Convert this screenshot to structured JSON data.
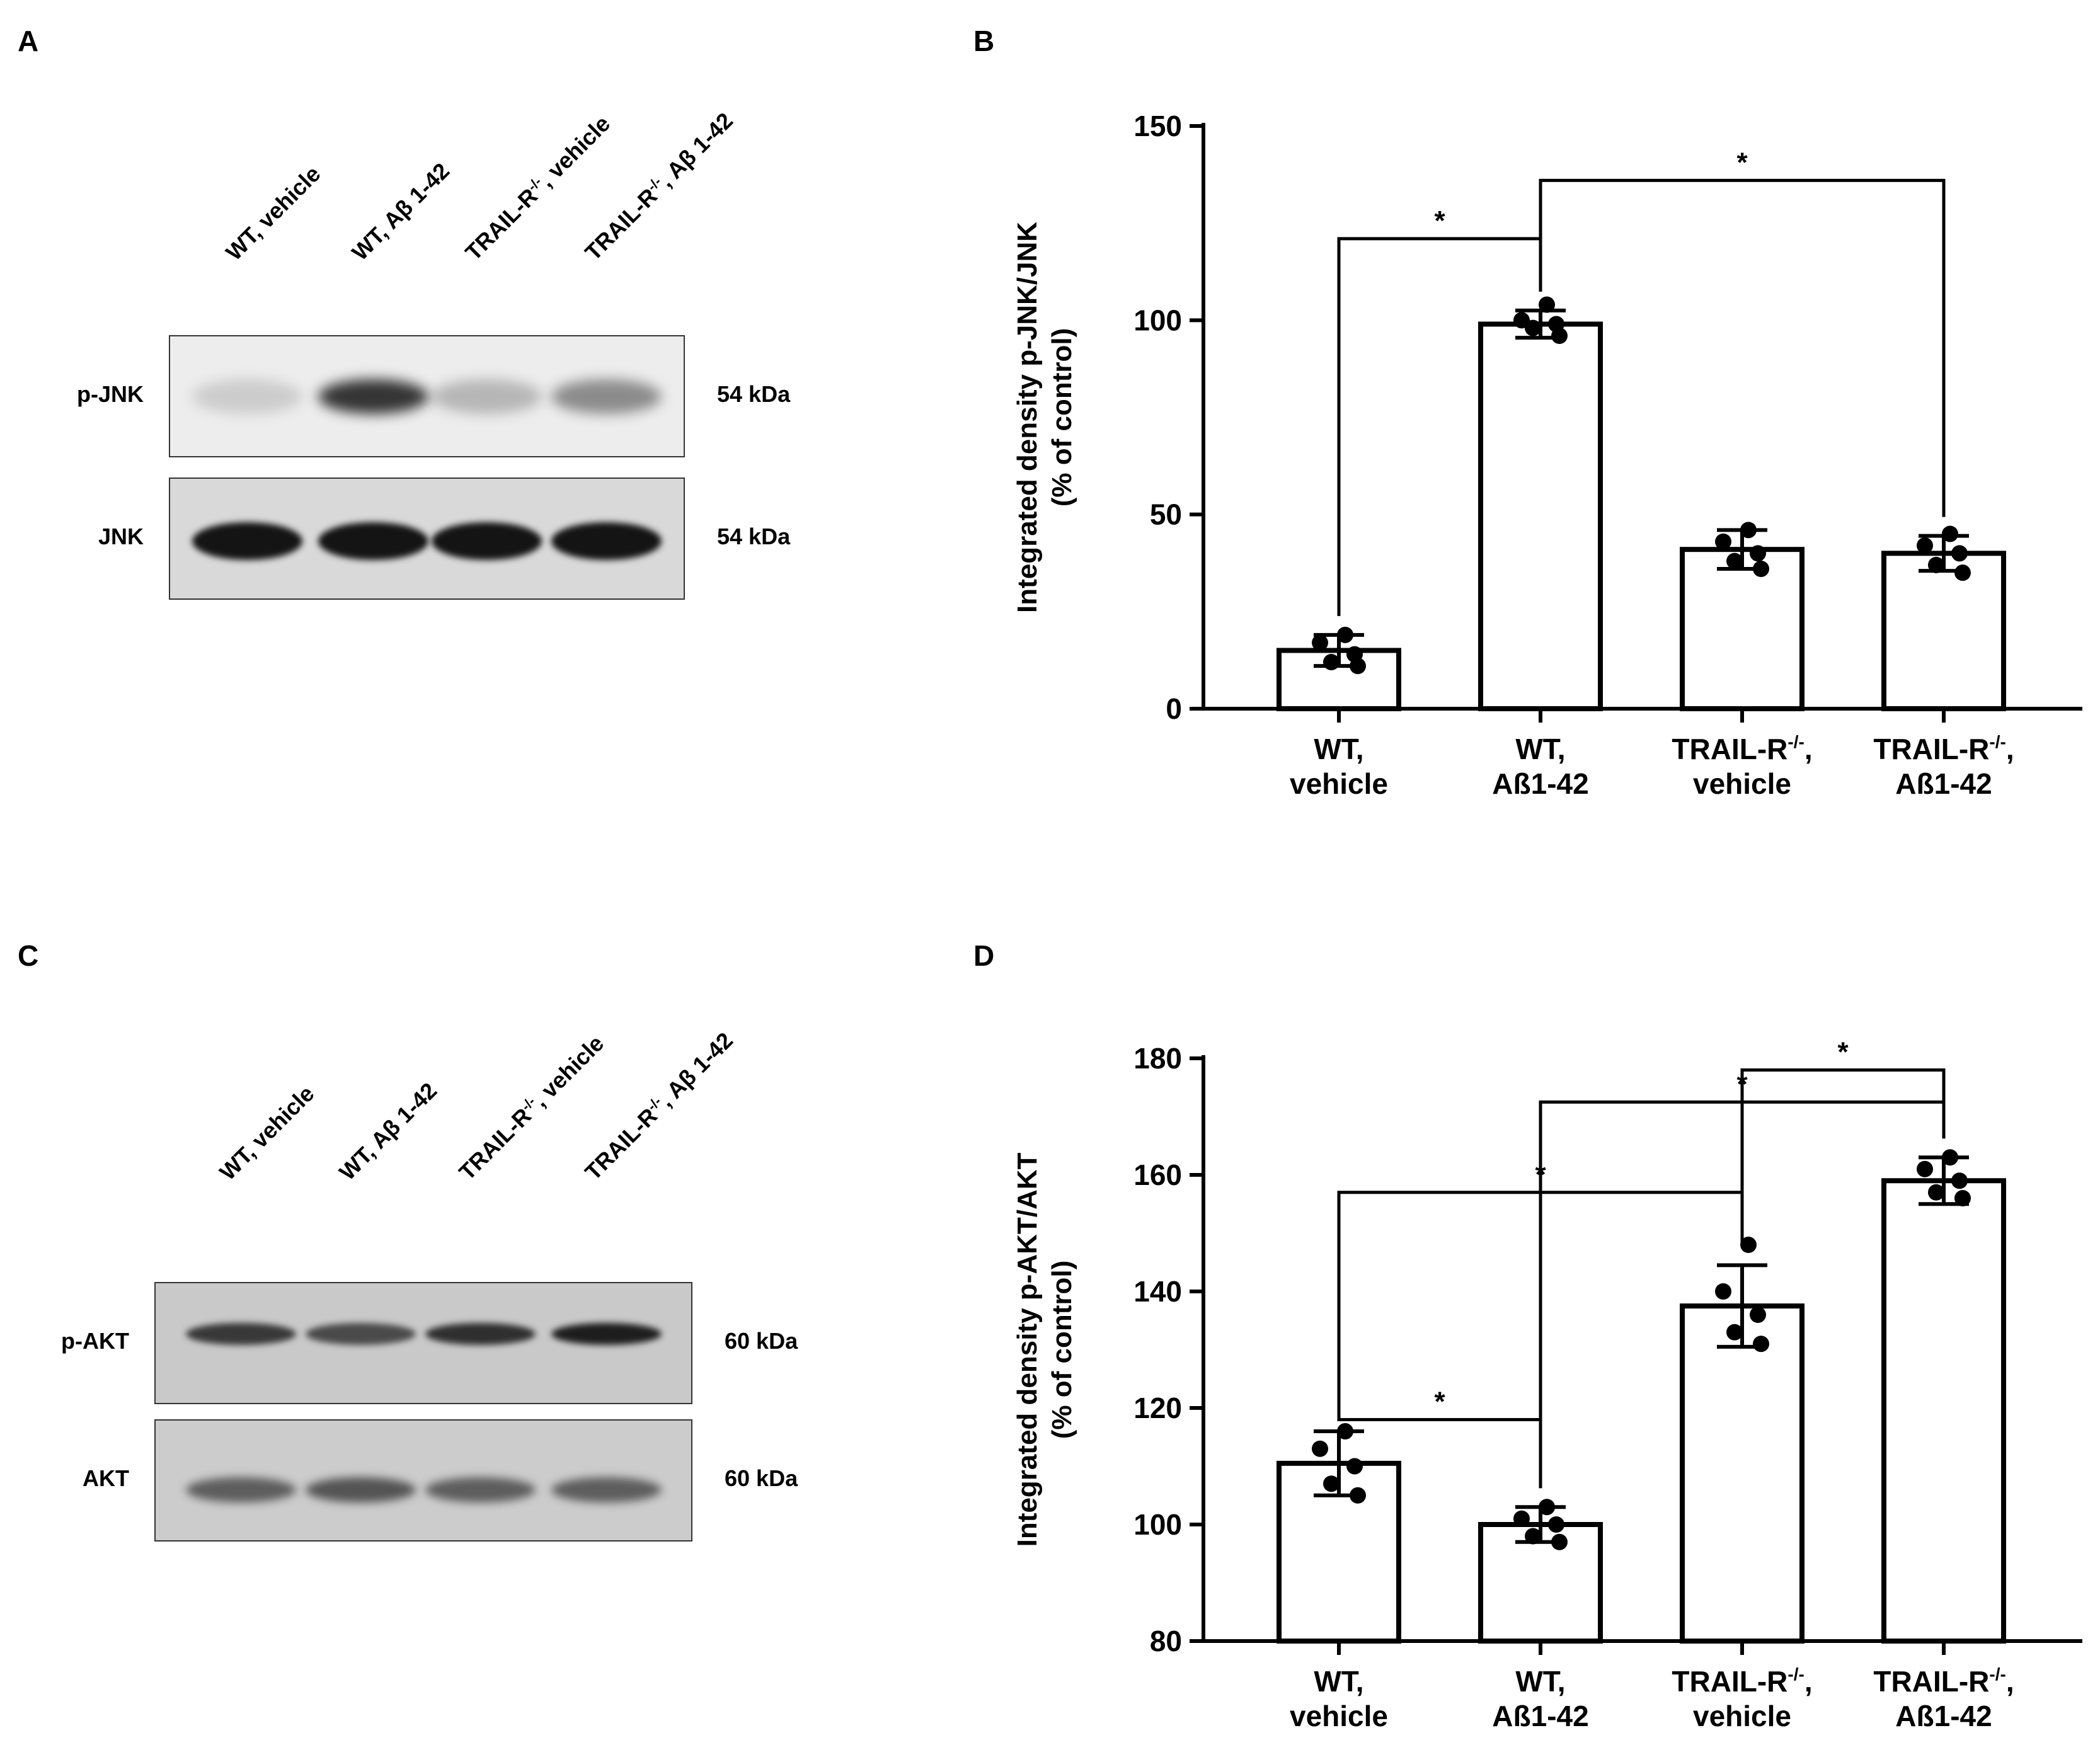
{
  "panels": {
    "A": "A",
    "B": "B",
    "C": "C",
    "D": "D"
  },
  "lanes": {
    "top": [
      "WT, vehicle",
      "WT, Aβ 1-42",
      "TRAIL-R-/-, vehicle",
      "TRAIL-R-/-, Aβ 1-42"
    ],
    "bottom": [
      "WT, vehicle",
      "WT, Aβ 1-42",
      "TRAIL-R-/-, vehicle",
      "TRAIL-R-/-, Aβ 1-42"
    ]
  },
  "lane_parts": {
    "top": [
      {
        "pre": "WT, vehicle",
        "sup": "",
        "post": ""
      },
      {
        "pre": "WT, Aβ 1-42",
        "sup": "",
        "post": ""
      },
      {
        "pre": "TRAIL-R",
        "sup": "-/-",
        "post": ", vehicle"
      },
      {
        "pre": "TRAIL-R",
        "sup": "-/-",
        "post": ", Aβ 1-42"
      }
    ],
    "bottom": [
      {
        "pre": "WT, vehicle",
        "sup": "",
        "post": ""
      },
      {
        "pre": "WT, Aβ 1-42",
        "sup": "",
        "post": ""
      },
      {
        "pre": "TRAIL-R",
        "sup": "-/-",
        "post": ", vehicle"
      },
      {
        "pre": "TRAIL-R",
        "sup": "-/-",
        "post": ", Aβ 1-42"
      }
    ]
  },
  "blots": {
    "A": [
      {
        "label": "p-JNK",
        "kda": "54 kDa",
        "intensity": [
          0.15,
          0.85,
          0.25,
          0.45
        ]
      },
      {
        "label": "JNK",
        "kda": "54 kDa",
        "intensity": [
          1,
          1,
          1,
          1
        ]
      }
    ],
    "C": [
      {
        "label": "p-AKT",
        "kda": "60 kDa",
        "intensity": [
          0.8,
          0.7,
          0.85,
          0.95
        ]
      },
      {
        "label": "AKT",
        "kda": "60 kDa",
        "intensity": [
          0.6,
          0.65,
          0.6,
          0.6
        ]
      }
    ]
  },
  "chart_data": [
    {
      "panel": "B",
      "type": "bar",
      "categories": [
        {
          "line1": "WT,",
          "line2": "vehicle",
          "sup": ""
        },
        {
          "line1": "WT,",
          "line2": "Aß1-42",
          "sup": ""
        },
        {
          "line1": "TRAIL-R",
          "line2": "vehicle",
          "sup": "-/-"
        },
        {
          "line1": "TRAIL-R",
          "line2": "Aß1-42",
          "sup": "-/-"
        }
      ],
      "values": [
        15,
        99,
        41,
        40
      ],
      "errors": [
        4,
        3.5,
        5,
        4.5
      ],
      "points": [
        [
          19,
          17,
          14,
          12,
          11
        ],
        [
          104,
          100,
          99,
          98,
          96
        ],
        [
          46,
          43,
          40,
          38,
          36
        ],
        [
          45,
          42,
          40,
          37,
          35
        ]
      ],
      "ylabel_line1": "Integrated density p-JNK/JNK",
      "ylabel_line2": "(% of control)",
      "ylim": [
        0,
        150
      ],
      "yticks": [
        0,
        50,
        100,
        150
      ],
      "significance": [
        {
          "from": 0,
          "to": 1,
          "y": 121,
          "label": "*"
        },
        {
          "from": 1,
          "to": 3,
          "y": 136,
          "label": "*"
        }
      ]
    },
    {
      "panel": "D",
      "type": "bar",
      "categories": [
        {
          "line1": "WT,",
          "line2": "vehicle",
          "sup": ""
        },
        {
          "line1": "WT,",
          "line2": "Aß1-42",
          "sup": ""
        },
        {
          "line1": "TRAIL-R",
          "line2": "vehicle",
          "sup": "-/-"
        },
        {
          "line1": "TRAIL-R",
          "line2": "Aß1-42",
          "sup": "-/-"
        }
      ],
      "values": [
        110.5,
        100,
        137.5,
        159
      ],
      "errors": [
        5.5,
        3,
        7,
        4
      ],
      "points": [
        [
          116,
          113,
          110,
          107,
          105
        ],
        [
          103,
          101,
          100,
          98,
          97
        ],
        [
          148,
          140,
          136,
          133,
          131
        ],
        [
          163,
          161,
          159,
          157,
          156
        ]
      ],
      "ylabel_line1": "Integrated density p-AKT/AKT",
      "ylabel_line2": "(% of control)",
      "ylim": [
        80,
        180
      ],
      "yticks": [
        80,
        100,
        120,
        140,
        160,
        180
      ],
      "significance": [
        {
          "from": 0,
          "to": 1,
          "y": 118,
          "label": "*"
        },
        {
          "from": 0,
          "to": 2,
          "y": 157,
          "label": "*"
        },
        {
          "from": 1,
          "to": 3,
          "y": 172.5,
          "label": "*"
        },
        {
          "from": 2,
          "to": 3,
          "y": 178,
          "label": "*"
        }
      ]
    }
  ]
}
